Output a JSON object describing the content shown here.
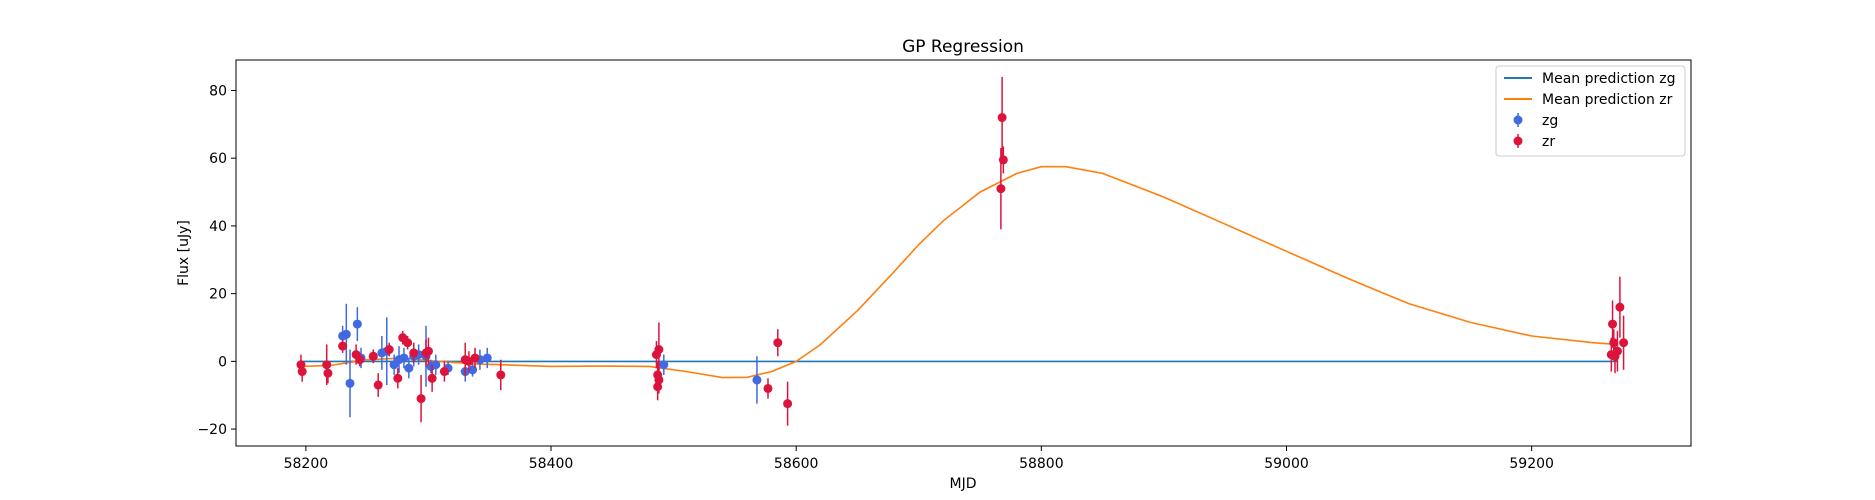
{
  "chart_data": {
    "type": "scatter",
    "title": "GP Regression",
    "xlabel": "MJD",
    "ylabel": "Flux [uJy]",
    "xlim": [
      58143,
      59330
    ],
    "ylim": [
      -25,
      89
    ],
    "xticks": [
      58200,
      58400,
      58600,
      58800,
      59000,
      59200
    ],
    "yticks": [
      -20,
      0,
      20,
      40,
      60,
      80
    ],
    "grid": false,
    "legend_position": "top-right",
    "colors": {
      "zg_line": "#1f77b4",
      "zr_line": "#ff7f0e",
      "zg_points": "#4169e1",
      "zr_points": "#dc143c"
    },
    "legend": [
      {
        "label": "Mean prediction zg",
        "kind": "line",
        "color": "#1f77b4"
      },
      {
        "label": "Mean prediction zr",
        "kind": "line",
        "color": "#ff7f0e"
      },
      {
        "label": "zg",
        "kind": "errorbar",
        "color": "#4169e1"
      },
      {
        "label": "zr",
        "kind": "errorbar",
        "color": "#dc143c"
      }
    ],
    "series": [
      {
        "name": "Mean prediction zg",
        "kind": "line",
        "x": [
          58196,
          58400,
          58600,
          58800,
          59000,
          59200,
          59270
        ],
        "y": [
          0,
          0,
          0,
          0,
          0,
          0,
          0
        ]
      },
      {
        "name": "Mean prediction zr",
        "kind": "line",
        "x": [
          58196,
          58220,
          58250,
          58280,
          58300,
          58340,
          58360,
          58400,
          58440,
          58480,
          58510,
          58540,
          58560,
          58580,
          58600,
          58620,
          58650,
          58680,
          58700,
          58720,
          58750,
          58780,
          58800,
          58820,
          58850,
          58900,
          58950,
          59000,
          59050,
          59100,
          59150,
          59200,
          59250,
          59270
        ],
        "y": [
          -1.5,
          -1.2,
          0.5,
          1.0,
          0.2,
          -0.8,
          -1.0,
          -1.5,
          -1.4,
          -1.5,
          -3.0,
          -4.8,
          -4.7,
          -3.0,
          0.0,
          5.0,
          15.0,
          26.5,
          34.5,
          41.5,
          50.0,
          55.5,
          57.5,
          57.5,
          55.5,
          48.5,
          40.5,
          32.5,
          24.5,
          17.0,
          11.5,
          7.5,
          5.5,
          5.0
        ]
      },
      {
        "name": "zg",
        "kind": "errorbar",
        "x": [
          58230,
          58233,
          58236,
          58242,
          58245,
          58255,
          58262,
          58266,
          58272,
          58276,
          58280,
          58284,
          58288,
          58292,
          58298,
          58302,
          58306,
          58316,
          58330,
          58336,
          58342,
          58348,
          58492,
          58568
        ],
        "y": [
          7.5,
          8.0,
          -6.5,
          11.0,
          1.0,
          1.5,
          2.5,
          3.0,
          -1.0,
          0.5,
          1.0,
          -2.0,
          1.5,
          2.0,
          1.5,
          -1.5,
          -1.0,
          -2.0,
          -3.0,
          -2.5,
          0.5,
          1.0,
          -1.0,
          -5.5
        ],
        "err": [
          3.0,
          9.0,
          10.0,
          5.0,
          3.0,
          2.0,
          5.0,
          10.0,
          3.0,
          4.0,
          3.0,
          3.0,
          3.0,
          3.0,
          9.0,
          2.0,
          3.0,
          2.0,
          3.0,
          2.0,
          3.0,
          3.0,
          3.0,
          7.0
        ]
      },
      {
        "name": "zr",
        "kind": "errorbar",
        "x": [
          58196,
          58197,
          58217,
          58218,
          58230,
          58241,
          58244,
          58255,
          58259,
          58268,
          58275,
          58279,
          58283,
          58288,
          58294,
          58298,
          58300,
          58303,
          58313,
          58330,
          58333,
          58338,
          58359,
          58486,
          58487,
          58487,
          58488,
          58488,
          58577,
          58585,
          58593,
          58767,
          58768,
          58769,
          59265,
          59266,
          59267,
          59268,
          59270,
          59272,
          59275
        ],
        "y": [
          -1.0,
          -3.0,
          -1.0,
          -3.5,
          4.5,
          2.0,
          0.5,
          1.5,
          -7.0,
          3.5,
          -5.0,
          7.0,
          5.5,
          2.5,
          -11.0,
          2.5,
          3.0,
          -5.0,
          -3.0,
          0.5,
          0.0,
          1.0,
          -4.0,
          2.0,
          -7.5,
          -4.0,
          3.5,
          -5.5,
          -8.0,
          5.5,
          -12.5,
          51.0,
          72.0,
          59.5,
          2.0,
          11.0,
          5.5,
          1.5,
          3.0,
          16.0,
          5.5
        ],
        "err": [
          3.0,
          3.0,
          6.0,
          3.0,
          2.0,
          3.0,
          2.0,
          2.0,
          3.5,
          2.0,
          3.0,
          2.0,
          2.0,
          3.0,
          7.0,
          4.0,
          4.0,
          4.0,
          3.0,
          5.0,
          3.0,
          3.0,
          4.5,
          4.0,
          4.0,
          4.0,
          8.0,
          4.0,
          3.0,
          4.0,
          6.5,
          12.0,
          12.0,
          4.0,
          5.0,
          7.0,
          4.0,
          5.0,
          6.0,
          9.0,
          8.0
        ]
      }
    ]
  }
}
